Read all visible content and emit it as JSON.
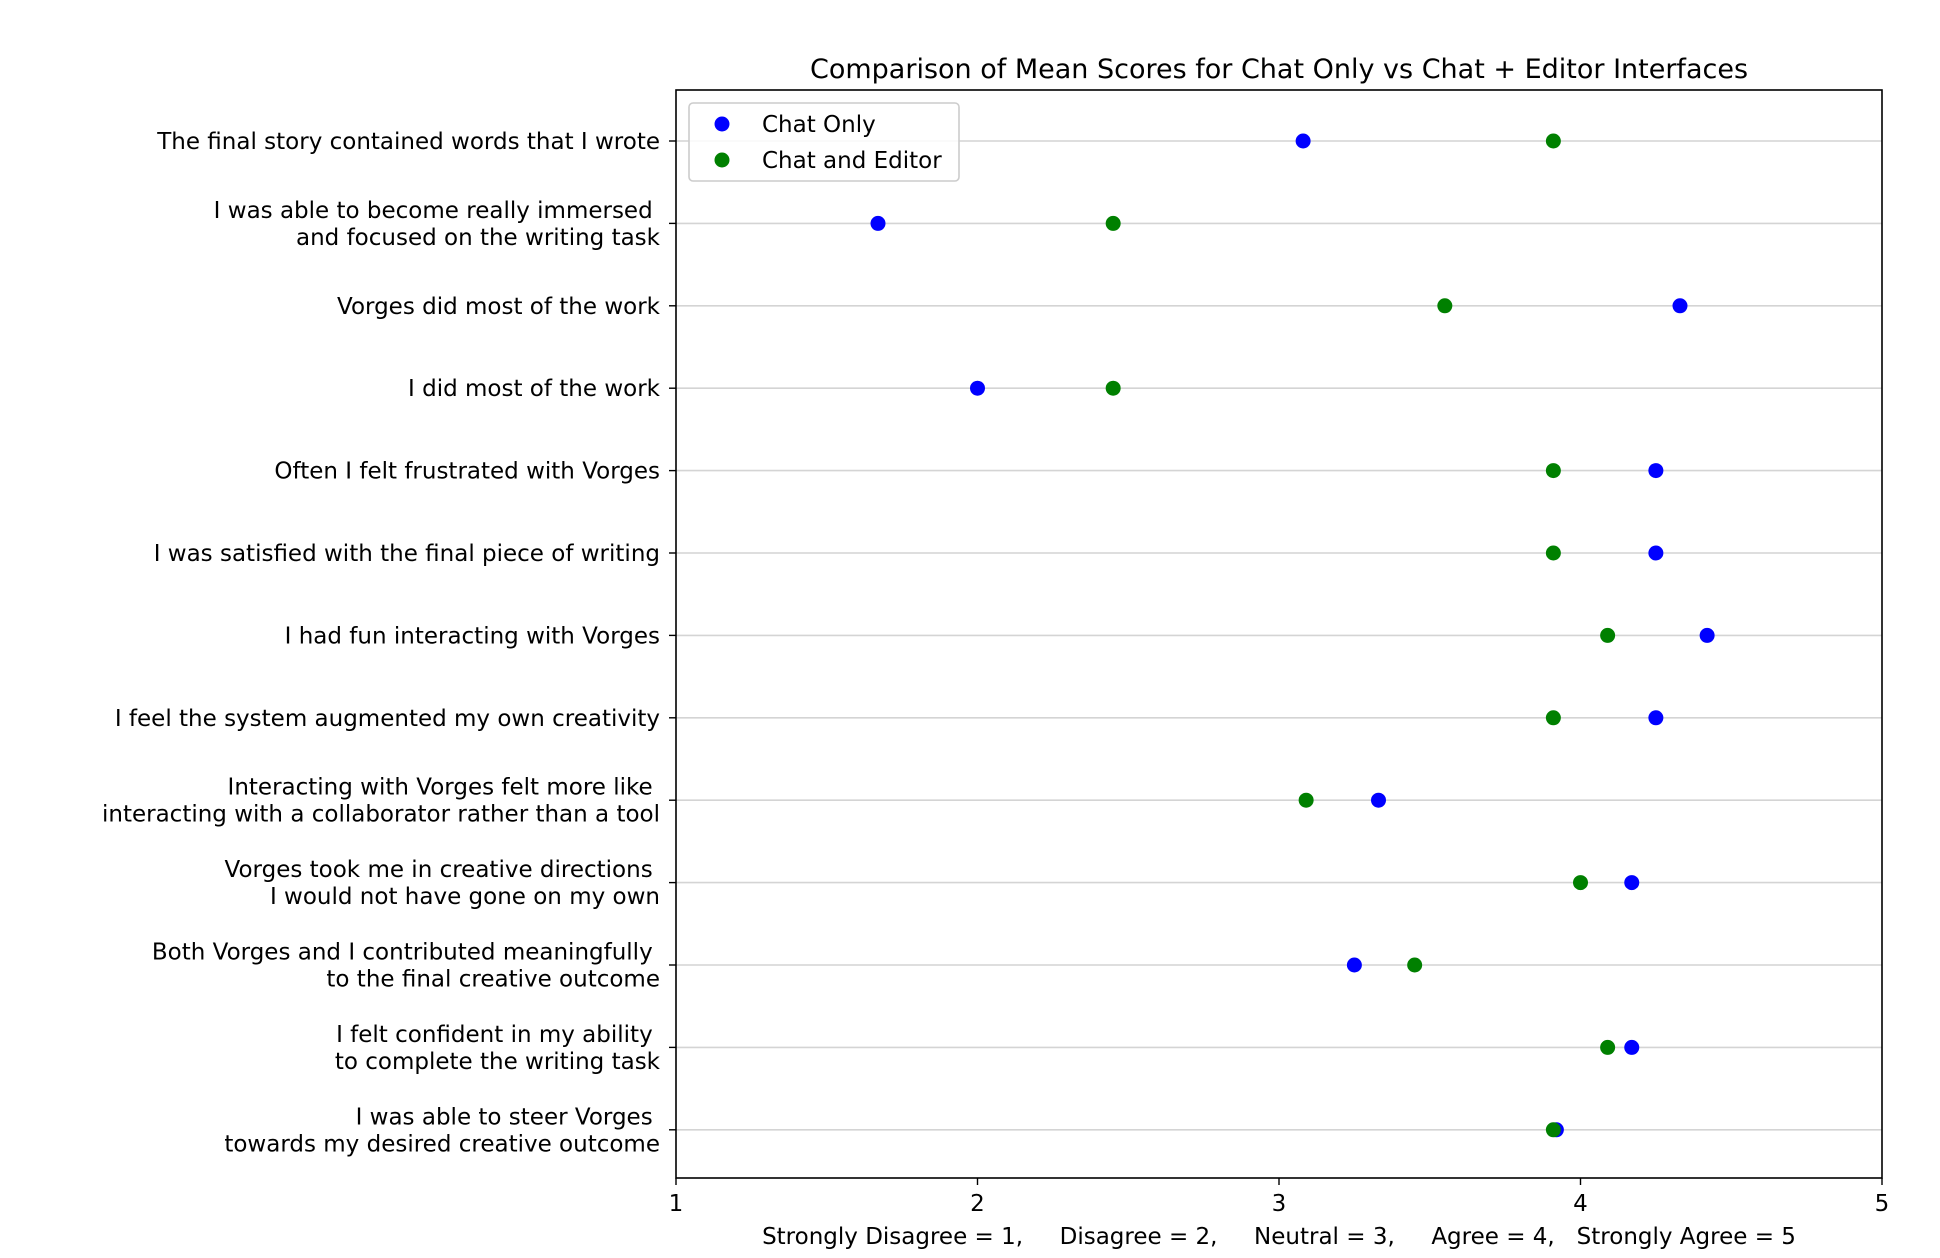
{
  "chart_data": {
    "type": "scatter",
    "title": "Comparison of Mean Scores for Chat Only vs Chat + Editor Interfaces",
    "xlabel": "Strongly Disagree = 1,     Disagree = 2,     Neutral = 3,     Agree = 4,   Strongly Agree = 5",
    "ylabel": "",
    "xlim": [
      1,
      5
    ],
    "xticks": [
      "1",
      "2",
      "3",
      "4",
      "5"
    ],
    "grid": "horizontal",
    "legend_position": "top-left",
    "categories": [
      [
        "The final story contained words that I wrote"
      ],
      [
        "I was able to become really immersed ",
        "and focused on the writing task"
      ],
      [
        "Vorges did most of the work"
      ],
      [
        "I did most of the work"
      ],
      [
        "Often I felt frustrated with Vorges"
      ],
      [
        "I was satisfied with the final piece of writing"
      ],
      [
        "I had fun interacting with Vorges"
      ],
      [
        "I feel the system augmented my own creativity"
      ],
      [
        "Interacting with Vorges felt more like ",
        "interacting with a collaborator rather than a tool"
      ],
      [
        "Vorges took me in creative directions ",
        "I would not have gone on my own"
      ],
      [
        "Both Vorges and I contributed meaningfully ",
        "to the final creative outcome"
      ],
      [
        "I felt confident in my ability ",
        "to complete the writing task"
      ],
      [
        "I was able to steer Vorges ",
        "towards my desired creative outcome"
      ]
    ],
    "series": [
      {
        "name": "Chat Only",
        "color": "#0000ff",
        "values": [
          3.08,
          1.67,
          4.33,
          2.0,
          4.25,
          4.25,
          4.42,
          4.25,
          3.33,
          4.17,
          3.25,
          4.17,
          3.92
        ]
      },
      {
        "name": "Chat and Editor",
        "color": "#008000",
        "values": [
          3.91,
          2.45,
          3.55,
          2.45,
          3.91,
          3.91,
          4.09,
          3.91,
          3.09,
          4.0,
          3.45,
          4.09,
          3.91
        ]
      }
    ]
  }
}
